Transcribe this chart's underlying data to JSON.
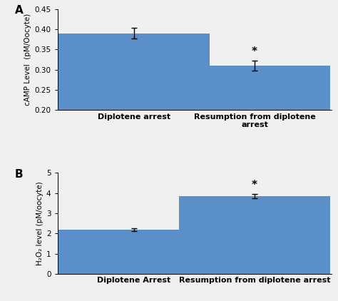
{
  "panel_A": {
    "categories": [
      "Diplotene arrest",
      "Resumption from diplotene\narrest"
    ],
    "values": [
      0.39,
      0.31
    ],
    "errors": [
      0.013,
      0.013
    ],
    "ylabel": "cAMP Level  (pM/Oocyte)",
    "ylim": [
      0.2,
      0.45
    ],
    "yticks": [
      0.2,
      0.25,
      0.3,
      0.35,
      0.4,
      0.45
    ],
    "bar_color": "#5b8fc9",
    "label": "A",
    "significance": [
      false,
      true
    ]
  },
  "panel_B": {
    "categories": [
      "Diplotene Arrest",
      "Resumption from diplotene arrest"
    ],
    "values": [
      2.2,
      3.85
    ],
    "errors": [
      0.07,
      0.1
    ],
    "ylabel": "H₂O₂ level (pM/oocyte)",
    "ylim": [
      0,
      5
    ],
    "yticks": [
      0,
      1,
      2,
      3,
      4,
      5
    ],
    "bar_color": "#5b8fc9",
    "label": "B",
    "significance": [
      false,
      true
    ]
  },
  "background_color": "#f0f0f0",
  "bar_width": 0.55,
  "fontsize_ticks": 7.5,
  "fontsize_label": 7.5,
  "fontsize_panel_label": 11,
  "fontsize_xticklabels": 8,
  "fontsize_significance": 11
}
